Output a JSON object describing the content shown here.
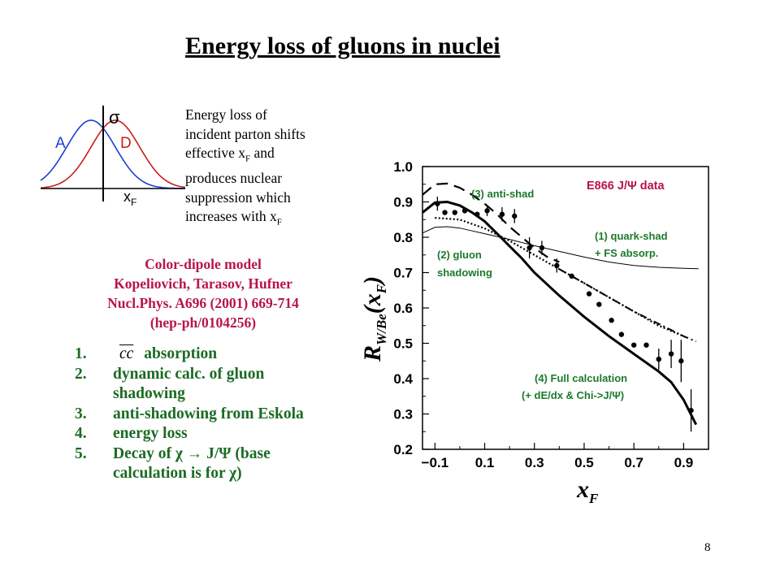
{
  "title": "Energy loss of gluons in nuclei",
  "description": {
    "line1": "Energy loss of",
    "line2": "incident parton shifts",
    "line3_a": "effective x",
    "line3_sub": "F",
    "line3_b": " and",
    "line4": "produces nuclear",
    "line5": "suppression which",
    "line6_a": "increases with x",
    "line6_sub": "F"
  },
  "sketch": {
    "sigma_label": "σ",
    "label_A": "A",
    "label_D": "D",
    "xaxis_label": "x",
    "xaxis_sub": "F",
    "colors": {
      "A": "#1a3fd6",
      "D": "#c81e1e"
    }
  },
  "reference": {
    "line1": "Color-dipole model",
    "line2": "Kopeliovich, Tarasov, Hufner",
    "line3": "Nucl.Phys. A696 (2001) 669-714",
    "line4": "(hep-ph/0104256)"
  },
  "list": [
    {
      "num": "1.",
      "cc": "cc",
      "text": " absorption"
    },
    {
      "num": "2.",
      "text": "dynamic calc. of gluon shadowing"
    },
    {
      "num": "3.",
      "text": "anti-shadowing from Eskola"
    },
    {
      "num": "4.",
      "text": "energy loss"
    },
    {
      "num": "5.",
      "text": "Decay of χ → J/Ψ (base calculation is for χ)"
    }
  ],
  "page_number": "8",
  "colors": {
    "ref_text": "#b8154a",
    "list_text": "#1b6b23",
    "annotation_green": "#1b7a2a"
  },
  "chart_data": {
    "type": "line",
    "title": "",
    "xlabel_main": "x",
    "xlabel_sub": "F",
    "ylabel_main": "R",
    "ylabel_sub": "W/Be",
    "ylabel_arg": "(x",
    "ylabel_arg_sub": "F",
    "ylabel_close": ")",
    "xlim": [
      -0.15,
      1.0
    ],
    "ylim": [
      0.2,
      1.0
    ],
    "xticks": [
      -0.1,
      0.1,
      0.3,
      0.5,
      0.7,
      0.9
    ],
    "xtick_labels": [
      "−0.1",
      "0.1",
      "0.3",
      "0.5",
      "0.7",
      "0.9"
    ],
    "yticks": [
      0.2,
      0.3,
      0.4,
      0.5,
      0.6,
      0.7,
      0.8,
      0.9,
      1.0
    ],
    "ytick_labels": [
      "0.2",
      "0.3",
      "0.4",
      "0.5",
      "0.6",
      "0.7",
      "0.8",
      "0.9",
      "1.0"
    ],
    "annotations": {
      "data_label": "E866 J/Ψ data",
      "anti_shad": "(3) anti-shad",
      "quark_shad_1": "(1) quark-shad",
      "quark_shad_2": "+ FS absorp.",
      "gluon_1": "(2) gluon",
      "gluon_2": "shadowing",
      "full_1": "(4) Full calculation",
      "full_2": "(+ dE/dx & Chi->J/Ψ)"
    },
    "data_points": [
      {
        "x": -0.09,
        "y": 0.895,
        "err": 0.02
      },
      {
        "x": -0.06,
        "y": 0.87,
        "err": 0.0
      },
      {
        "x": -0.02,
        "y": 0.87,
        "err": 0.0
      },
      {
        "x": 0.02,
        "y": 0.875,
        "err": 0.0
      },
      {
        "x": 0.07,
        "y": 0.865,
        "err": 0.0
      },
      {
        "x": 0.11,
        "y": 0.875,
        "err": 0.015
      },
      {
        "x": 0.17,
        "y": 0.865,
        "err": 0.02
      },
      {
        "x": 0.22,
        "y": 0.86,
        "err": 0.02
      },
      {
        "x": 0.28,
        "y": 0.77,
        "err": 0.03
      },
      {
        "x": 0.33,
        "y": 0.77,
        "err": 0.02
      },
      {
        "x": 0.39,
        "y": 0.72,
        "err": 0.02
      },
      {
        "x": 0.45,
        "y": 0.69,
        "err": 0.0
      },
      {
        "x": 0.52,
        "y": 0.64,
        "err": 0.0
      },
      {
        "x": 0.56,
        "y": 0.61,
        "err": 0.0
      },
      {
        "x": 0.61,
        "y": 0.565,
        "err": 0.0
      },
      {
        "x": 0.65,
        "y": 0.525,
        "err": 0.0
      },
      {
        "x": 0.7,
        "y": 0.495,
        "err": 0.0
      },
      {
        "x": 0.75,
        "y": 0.495,
        "err": 0.0
      },
      {
        "x": 0.8,
        "y": 0.455,
        "err": 0.03
      },
      {
        "x": 0.85,
        "y": 0.47,
        "err": 0.04
      },
      {
        "x": 0.89,
        "y": 0.45,
        "err": 0.06
      },
      {
        "x": 0.93,
        "y": 0.31,
        "err": 0.06
      }
    ],
    "series": [
      {
        "key": "quark_shad",
        "style": "thin",
        "x": [
          -0.15,
          -0.1,
          -0.05,
          0.0,
          0.05,
          0.1,
          0.2,
          0.3,
          0.4,
          0.5,
          0.6,
          0.7,
          0.8,
          0.9,
          0.96
        ],
        "y": [
          0.812,
          0.828,
          0.83,
          0.826,
          0.818,
          0.81,
          0.794,
          0.776,
          0.76,
          0.744,
          0.73,
          0.72,
          0.715,
          0.712,
          0.711
        ]
      },
      {
        "key": "gluon_shadowing",
        "style": "dotted",
        "x": [
          -0.1,
          0.0,
          0.1,
          0.2,
          0.3,
          0.4,
          0.5,
          0.6,
          0.7,
          0.8,
          0.9
        ],
        "y": [
          0.855,
          0.85,
          0.825,
          0.79,
          0.75,
          0.71,
          0.67,
          0.63,
          0.59,
          0.55,
          0.52
        ]
      },
      {
        "key": "anti_shad",
        "style": "dashed",
        "x": [
          -0.15,
          -0.1,
          -0.05,
          0.0,
          0.05,
          0.1,
          0.15,
          0.2,
          0.25,
          0.3,
          0.35,
          0.4
        ],
        "y": [
          0.92,
          0.95,
          0.952,
          0.94,
          0.92,
          0.895,
          0.865,
          0.83,
          0.8,
          0.77,
          0.745,
          0.73
        ]
      },
      {
        "key": "dash_dot",
        "style": "dashdot",
        "x": [
          0.4,
          0.5,
          0.6,
          0.7,
          0.8,
          0.9,
          0.95
        ],
        "y": [
          0.71,
          0.67,
          0.63,
          0.59,
          0.555,
          0.52,
          0.505
        ]
      },
      {
        "key": "full_calculation",
        "style": "thick",
        "x": [
          -0.15,
          -0.1,
          -0.05,
          0.0,
          0.05,
          0.1,
          0.15,
          0.2,
          0.25,
          0.3,
          0.4,
          0.5,
          0.6,
          0.7,
          0.8,
          0.85,
          0.9,
          0.95
        ],
        "y": [
          0.87,
          0.898,
          0.9,
          0.89,
          0.87,
          0.845,
          0.81,
          0.775,
          0.74,
          0.7,
          0.635,
          0.575,
          0.52,
          0.47,
          0.42,
          0.39,
          0.34,
          0.27
        ]
      }
    ]
  }
}
